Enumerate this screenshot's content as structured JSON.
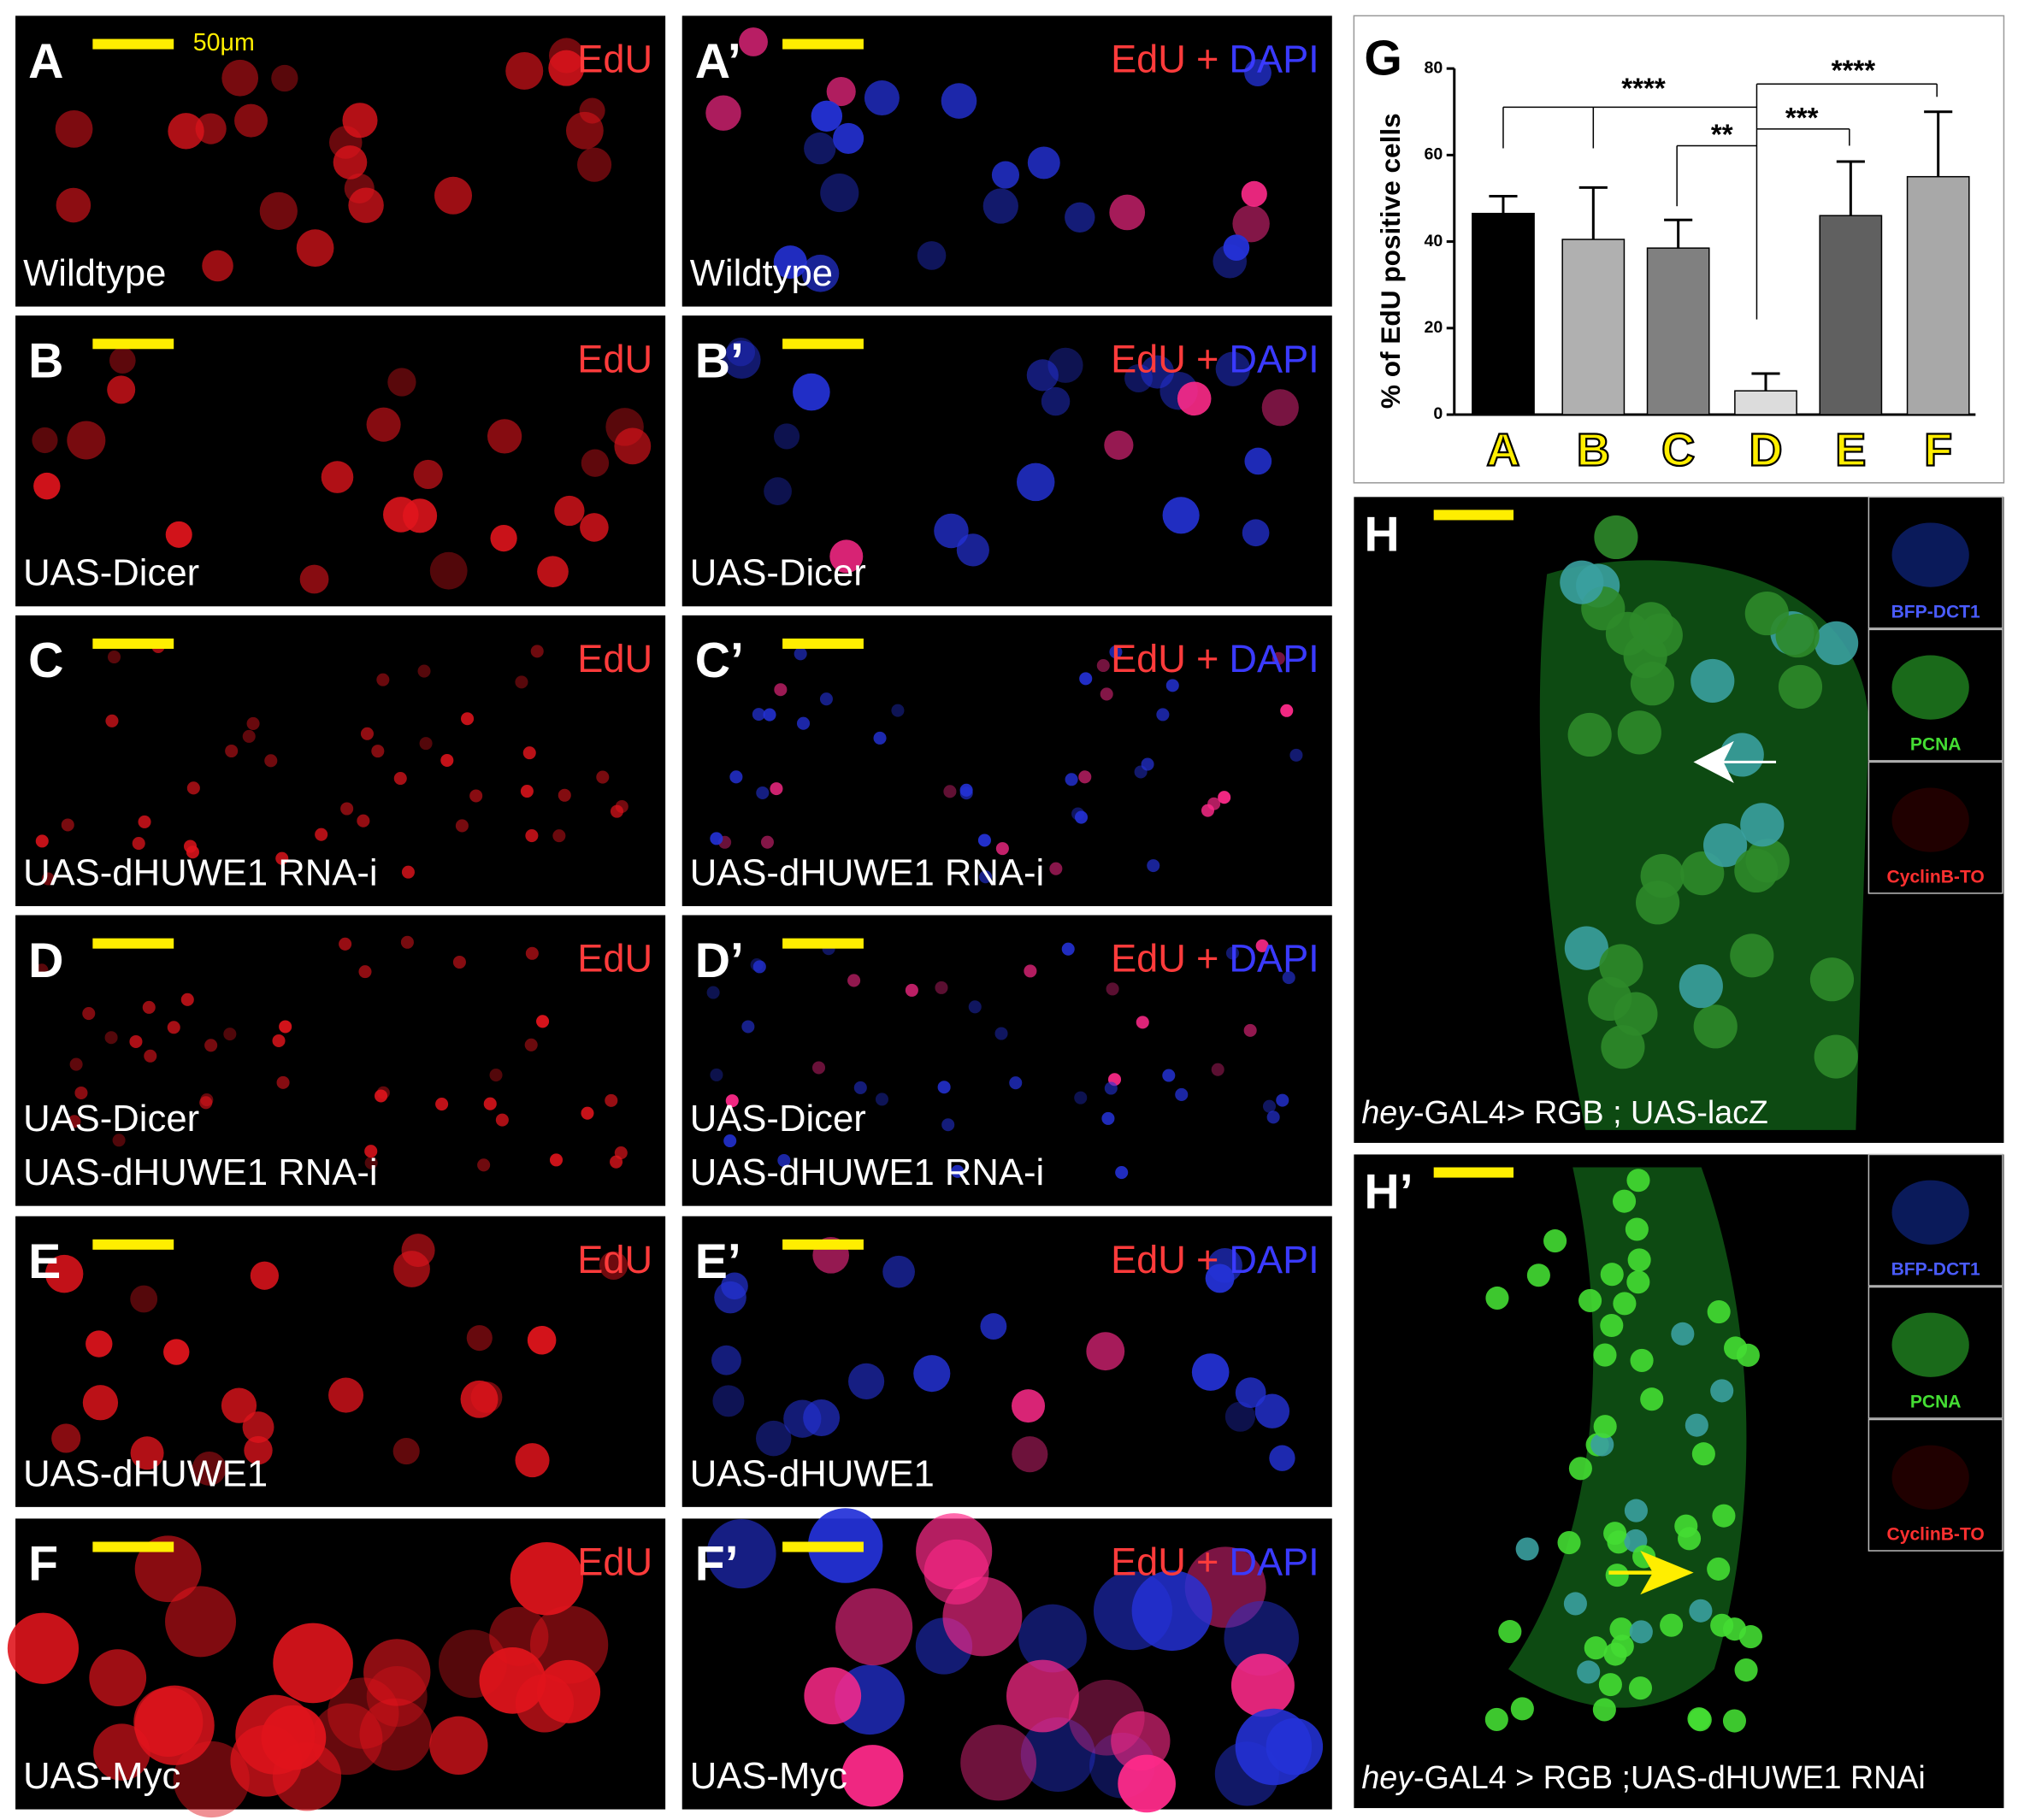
{
  "panels": [
    {
      "label": "A",
      "stain": [
        "EdU"
      ],
      "caption": [
        "Wildtype"
      ]
    },
    {
      "label": "A’",
      "stain": [
        "EdU",
        "+",
        "DAPI"
      ],
      "caption": [
        "Wildtype"
      ]
    },
    {
      "label": "B",
      "stain": [
        "EdU"
      ],
      "caption": [
        "UAS-Dicer"
      ]
    },
    {
      "label": "B’",
      "stain": [
        "EdU",
        "+",
        "DAPI"
      ],
      "caption": [
        "UAS-Dicer"
      ]
    },
    {
      "label": "C",
      "stain": [
        "EdU"
      ],
      "caption": [
        "UAS-dHUWE1 RNA-i"
      ]
    },
    {
      "label": "C’",
      "stain": [
        "EdU",
        "+",
        "DAPI"
      ],
      "caption": [
        "UAS-dHUWE1 RNA-i"
      ]
    },
    {
      "label": "D",
      "stain": [
        "EdU"
      ],
      "caption": [
        "UAS-Dicer",
        "UAS-dHUWE1 RNA-i"
      ]
    },
    {
      "label": "D’",
      "stain": [
        "EdU",
        "+",
        "DAPI"
      ],
      "caption": [
        "UAS-Dicer",
        "UAS-dHUWE1 RNA-i"
      ]
    },
    {
      "label": "E",
      "stain": [
        "EdU"
      ],
      "caption": [
        "UAS-dHUWE1"
      ]
    },
    {
      "label": "E’",
      "stain": [
        "EdU",
        "+",
        "DAPI"
      ],
      "caption": [
        "UAS-dHUWE1"
      ]
    },
    {
      "label": "F",
      "stain": [
        "EdU"
      ],
      "caption": [
        "UAS-Myc"
      ]
    },
    {
      "label": "F’",
      "stain": [
        "EdU",
        "+",
        "DAPI"
      ],
      "caption": [
        "UAS-Myc"
      ]
    }
  ],
  "scale_bar_label": "50μm",
  "chart_panel_label": "G",
  "chart_data": {
    "type": "bar",
    "ylabel": "% of EdU positive cells",
    "categories": [
      "A",
      "B",
      "C",
      "D",
      "E",
      "F"
    ],
    "values": [
      46.5,
      40.5,
      38.5,
      5.5,
      46,
      55
    ],
    "errors": [
      4,
      12,
      6.5,
      4,
      12.5,
      15
    ],
    "colors": [
      "#000000",
      "#b0b0b0",
      "#808080",
      "#dcdcdc",
      "#606060",
      "#a8a8a8"
    ],
    "ylim": [
      0,
      80
    ],
    "yticks": [
      0,
      20,
      40,
      60,
      80
    ],
    "annotations": [
      "****",
      "**",
      "***",
      "****"
    ]
  },
  "h_panels": [
    {
      "label": "H",
      "caption_italic": "hey",
      "caption": "-GAL4> RGB ; UAS-lacZ",
      "insets": [
        "BFP-DCT1",
        "PCNA",
        "CyclinB-TO"
      ]
    },
    {
      "label": "H’",
      "caption_italic": "hey",
      "caption": "-GAL4 > RGB ;UAS-dHUWE1 RNAi",
      "insets": [
        "BFP-DCT1",
        "PCNA",
        "CyclinB-TO"
      ]
    }
  ]
}
